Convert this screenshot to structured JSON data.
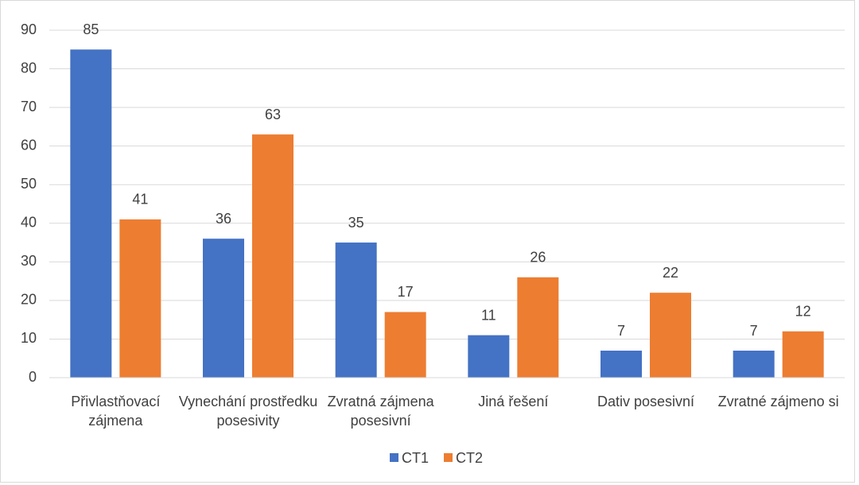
{
  "chart_data": {
    "type": "bar",
    "categories": [
      "Přivlastňovací zájmena",
      "Vynechání prostředku posesivity",
      "Zvratná zájmena posesivní",
      "Jiná řešení",
      "Dativ posesivní",
      "Zvratné zájmeno si"
    ],
    "series": [
      {
        "name": "CT1",
        "color": "#4472c4",
        "values": [
          85,
          36,
          35,
          11,
          7,
          7
        ]
      },
      {
        "name": "CT2",
        "color": "#ed7d31",
        "values": [
          41,
          63,
          17,
          26,
          22,
          12
        ]
      }
    ],
    "ylim": [
      0,
      90
    ],
    "yticks": [
      0,
      10,
      20,
      30,
      40,
      50,
      60,
      70,
      80,
      90
    ],
    "grid": true,
    "legend": "bottom"
  }
}
